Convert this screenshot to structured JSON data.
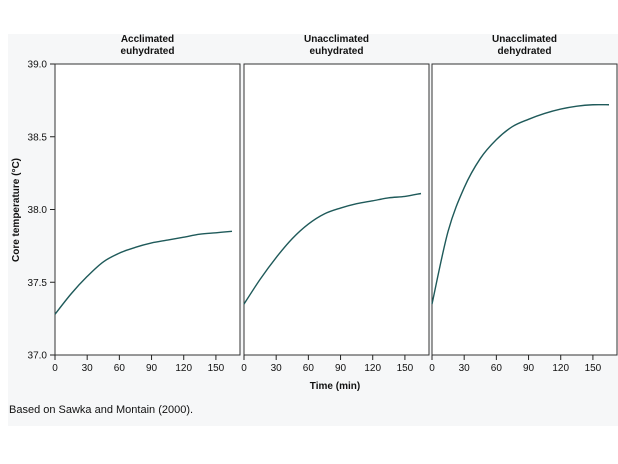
{
  "chart_data": {
    "type": "line",
    "ylabel": "Core temperature (°C)",
    "xlabel": "Time (min)",
    "ylim": [
      37.0,
      39.0
    ],
    "yticks": [
      37.0,
      37.5,
      38.0,
      38.5,
      39.0
    ],
    "ytick_labels": [
      "37.0",
      "37.5",
      "38.0",
      "38.5",
      "39.0"
    ],
    "xlim": [
      0,
      165
    ],
    "xticks": [
      0,
      30,
      60,
      90,
      120,
      150
    ],
    "xtick_labels": [
      "0",
      "30",
      "60",
      "90",
      "120",
      "150"
    ],
    "panels": [
      {
        "title_lines": [
          "Acclimated",
          "euhydrated"
        ],
        "series": [
          {
            "name": "Acclimated euhydrated",
            "color": "#1f5a5a",
            "x": [
              0,
              15,
              30,
              45,
              60,
              75,
              90,
              105,
              120,
              135,
              150,
              165
            ],
            "y": [
              37.28,
              37.42,
              37.54,
              37.64,
              37.7,
              37.74,
              37.77,
              37.79,
              37.81,
              37.83,
              37.84,
              37.85
            ]
          }
        ]
      },
      {
        "title_lines": [
          "Unacclimated",
          "euhydrated"
        ],
        "series": [
          {
            "name": "Unacclimated euhydrated",
            "color": "#1f5a5a",
            "x": [
              0,
              15,
              30,
              45,
              60,
              75,
              90,
              105,
              120,
              135,
              150,
              165
            ],
            "y": [
              37.35,
              37.52,
              37.67,
              37.8,
              37.9,
              37.97,
              38.01,
              38.04,
              38.06,
              38.08,
              38.09,
              38.11
            ]
          }
        ]
      },
      {
        "title_lines": [
          "Unacclimated",
          "dehydrated"
        ],
        "series": [
          {
            "name": "Unacclimated dehydrated",
            "color": "#1f5a5a",
            "x": [
              0,
              15,
              30,
              45,
              60,
              75,
              90,
              105,
              120,
              135,
              150,
              165
            ],
            "y": [
              37.35,
              37.85,
              38.15,
              38.35,
              38.48,
              38.57,
              38.62,
              38.66,
              38.69,
              38.71,
              38.72,
              38.72
            ]
          }
        ]
      }
    ]
  },
  "caption": "Based on Sawka and Montain (2000)."
}
